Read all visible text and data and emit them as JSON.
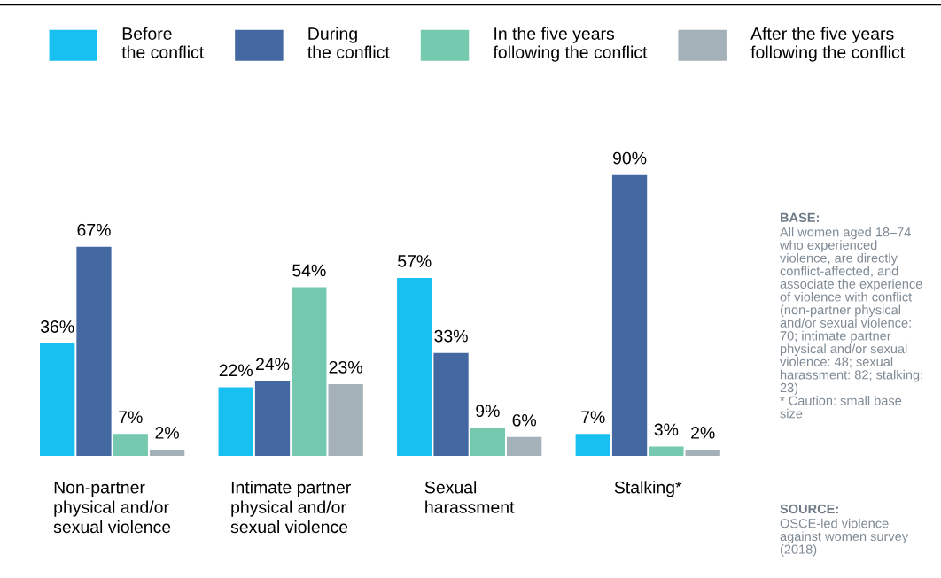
{
  "chart_data": {
    "type": "bar",
    "categories": [
      "Non-partner\nphysical and/or\nsexual violence",
      "Intimate partner\nphysical and/or\nsexual violence",
      "Sexual\nharassment",
      "Stalking*"
    ],
    "series": [
      {
        "name": "Before\nthe conflict",
        "color": "#17c0f0",
        "values": [
          36,
          22,
          57,
          7
        ],
        "value_labels": [
          "36%",
          "22%",
          "57%",
          "7%"
        ]
      },
      {
        "name": "During\nthe conflict",
        "color": "#4468a2",
        "values": [
          67,
          24,
          33,
          90
        ],
        "value_labels": [
          "67%",
          "24%",
          "33%",
          "90%"
        ]
      },
      {
        "name": "In the five years\nfollowing the conflict",
        "color": "#74c9ae",
        "values": [
          7,
          54,
          9,
          3
        ],
        "value_labels": [
          "7%",
          "54%",
          "9%",
          "3%"
        ]
      },
      {
        "name": "After the five years\nfollowing the conflict",
        "color": "#a4b1b9",
        "values": [
          2,
          23,
          6,
          2
        ],
        "value_labels": [
          "2%",
          "23%",
          "6%",
          "2%"
        ]
      }
    ],
    "legend": "top",
    "annotations": [
      "BASE:",
      "All women aged 18–74\nwho experienced\nviolence, are directly\nconflict-affected, and\nassociate the experience\nof violence with conflict\n(non-partner physical\nand/or sexual violence:\n70; intimate partner\nphysical and/or sexual\nviolence: 48; sexual\nharassment: 82; stalking:\n23)\n* Caution: small base\nsize",
      "SOURCE:",
      "OSCE-led violence\nagainst women survey\n(2018)"
    ]
  }
}
